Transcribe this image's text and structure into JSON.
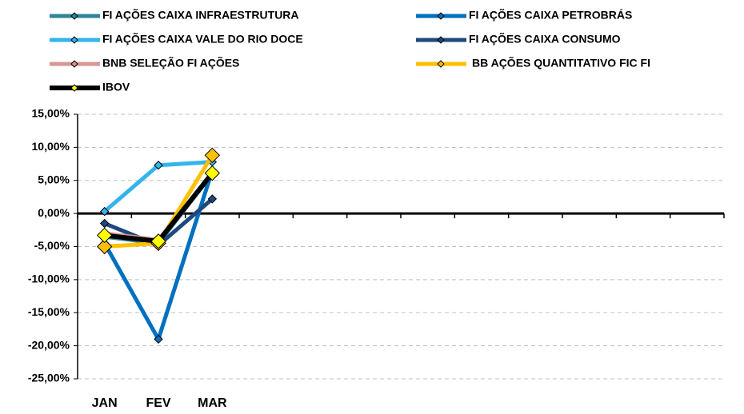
{
  "chart_data": {
    "type": "line",
    "categories": [
      "JAN",
      "FEV",
      "MAR",
      null,
      null,
      null,
      null,
      null,
      null,
      null,
      null,
      null
    ],
    "series": [
      {
        "name": "FI AÇÕES CAIXA INFRAESTRUTURA",
        "color": "#31859C",
        "values": [
          -3.5,
          -4.5,
          6.0,
          null,
          null,
          null,
          null,
          null,
          null,
          null,
          null,
          null
        ]
      },
      {
        "name": "FI AÇÕES CAIXA PETROBRÁS",
        "color": "#0070C0",
        "values": [
          -4.5,
          -19.0,
          6.5,
          null,
          null,
          null,
          null,
          null,
          null,
          null,
          null,
          null
        ]
      },
      {
        "name": "FI AÇÕES CAIXA VALE DO RIO DOCE",
        "color": "#33B5EC",
        "values": [
          0.3,
          7.3,
          7.8,
          null,
          null,
          null,
          null,
          null,
          null,
          null,
          null,
          null
        ]
      },
      {
        "name": "FI AÇÕES CAIXA CONSUMO",
        "color": "#1F497D",
        "values": [
          -1.5,
          -4.8,
          2.2,
          null,
          null,
          null,
          null,
          null,
          null,
          null,
          null,
          null
        ]
      },
      {
        "name": "BNB SELEÇÃO FI AÇÕES",
        "color": "#D99694",
        "values": [
          -3.0,
          -4.0,
          6.0,
          null,
          null,
          null,
          null,
          null,
          null,
          null,
          null,
          null
        ]
      },
      {
        "name": "BB AÇÕES QUANTITATIVO FIC FI",
        "color": "#FFC000",
        "values": [
          -5.0,
          -4.5,
          8.8,
          null,
          null,
          null,
          null,
          null,
          null,
          null,
          null,
          null
        ]
      },
      {
        "name": "IBOV",
        "color": "#000000",
        "marker_color": "#FFFF00",
        "values": [
          -3.3,
          -4.2,
          6.1,
          null,
          null,
          null,
          null,
          null,
          null,
          null,
          null,
          null
        ]
      }
    ],
    "ylim": [
      -25,
      15
    ],
    "yticks": [
      {
        "value": -25,
        "label": "-25,00%"
      },
      {
        "value": -20,
        "label": "-20,00%"
      },
      {
        "value": -15,
        "label": "-15,00%"
      },
      {
        "value": -10,
        "label": "-10,00%"
      },
      {
        "value": -5,
        "label": "-5,00%"
      },
      {
        "value": 0,
        "label": "0,00%"
      },
      {
        "value": 5,
        "label": "5,00%"
      },
      {
        "value": 10,
        "label": "10,00%"
      },
      {
        "value": 15,
        "label": "15,00%"
      }
    ],
    "grid": true
  }
}
